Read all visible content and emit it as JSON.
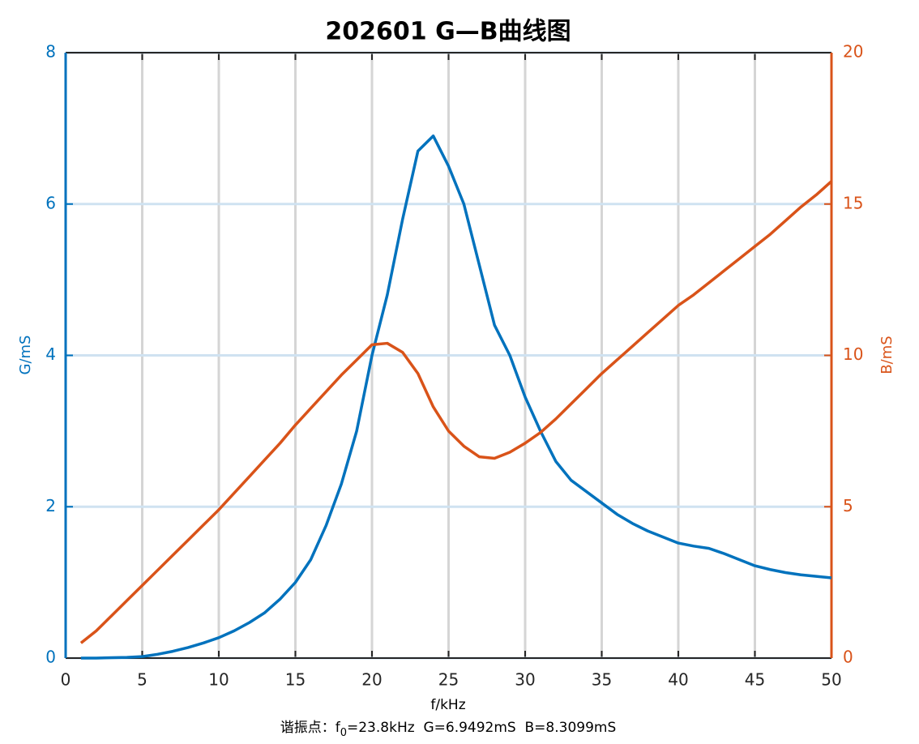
{
  "chart_data": {
    "type": "line",
    "title": "202601 G—B曲线图",
    "x_label": "f/kHz",
    "y_label": "G/mS",
    "y2_label": "B/mS",
    "annotation": [
      "谐振点：f",
      "0",
      "=23.8kHz  G=6.9492mS  B=8.3099mS"
    ],
    "x": [
      1,
      2,
      3,
      4,
      5,
      6,
      7,
      8,
      9,
      10,
      11,
      12,
      13,
      14,
      15,
      16,
      17,
      18,
      19,
      20,
      21,
      22,
      23,
      24,
      25,
      26,
      27,
      28,
      29,
      30,
      31,
      32,
      33,
      34,
      35,
      36,
      37,
      38,
      39,
      40,
      41,
      42,
      43,
      44,
      45,
      46,
      47,
      48,
      49,
      50
    ],
    "series": [
      {
        "name": "G",
        "color": "#0072bd",
        "axis": "y",
        "values": [
          0,
          0,
          0.005,
          0.01,
          0.02,
          0.05,
          0.09,
          0.14,
          0.2,
          0.27,
          0.36,
          0.47,
          0.6,
          0.78,
          1.0,
          1.3,
          1.75,
          2.3,
          3.0,
          4.0,
          4.8,
          5.8,
          6.7,
          6.9,
          6.5,
          6.0,
          5.2,
          4.4,
          4.0,
          3.45,
          3.0,
          2.6,
          2.35,
          2.2,
          2.05,
          1.9,
          1.78,
          1.68,
          1.6,
          1.52,
          1.48,
          1.45,
          1.38,
          1.3,
          1.22,
          1.17,
          1.13,
          1.1,
          1.08,
          1.06
        ]
      },
      {
        "name": "B",
        "color": "#d95319",
        "axis": "y2",
        "values": [
          0.5,
          0.9,
          1.4,
          1.9,
          2.4,
          2.9,
          3.4,
          3.9,
          4.4,
          4.9,
          5.45,
          6.0,
          6.55,
          7.1,
          7.7,
          8.25,
          8.8,
          9.35,
          9.85,
          10.35,
          10.4,
          10.1,
          9.4,
          8.3,
          7.5,
          7.0,
          6.65,
          6.6,
          6.8,
          7.1,
          7.45,
          7.9,
          8.4,
          8.9,
          9.4,
          9.85,
          10.3,
          10.75,
          11.2,
          11.65,
          12.0,
          12.4,
          12.8,
          13.2,
          13.6,
          14.0,
          14.45,
          14.9,
          15.3,
          15.75
        ]
      }
    ],
    "xlim": [
      0,
      50
    ],
    "xticks": [
      0,
      5,
      10,
      15,
      20,
      25,
      30,
      35,
      40,
      45,
      50
    ],
    "ylim": [
      0,
      8
    ],
    "yticks": [
      0,
      2,
      4,
      6,
      8
    ],
    "y2lim": [
      0,
      20
    ],
    "y2ticks": [
      0,
      5,
      10,
      15,
      20
    ],
    "grid": true
  }
}
